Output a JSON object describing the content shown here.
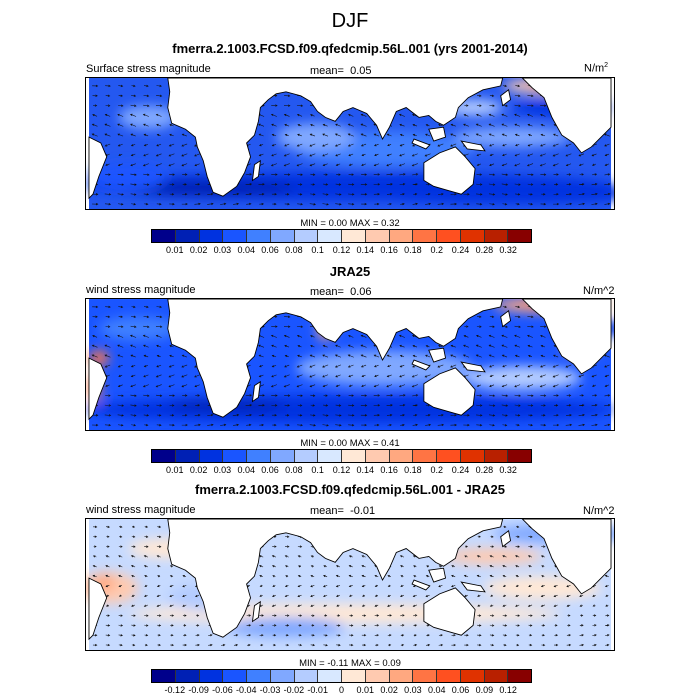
{
  "title": "DJF",
  "panels": [
    {
      "title": "fmerra.2.1003.FCSD.f09.qfedcmip.56L.001 (yrs 2001-2014)",
      "left_label": "Surface stress magnitude",
      "mean_label": "mean=",
      "mean_value": "0.05",
      "units": "N/m",
      "units_sup": "2",
      "minmax": "MIN =   0.00 MAX =   0.32",
      "colorbar_ticks": [
        "0.01",
        "0.02",
        "0.03",
        "0.04",
        "0.06",
        "0.08",
        "0.1",
        "0.12",
        "0.14",
        "0.16",
        "0.18",
        "0.2",
        "0.24",
        "0.28",
        "0.32"
      ]
    },
    {
      "title": "JRA25",
      "left_label": "wind stress magnitude",
      "mean_label": "mean=",
      "mean_value": "0.06",
      "units": "N/m^2",
      "units_sup": "",
      "minmax": "MIN =   0.00 MAX =   0.41",
      "colorbar_ticks": [
        "0.01",
        "0.02",
        "0.03",
        "0.04",
        "0.06",
        "0.08",
        "0.1",
        "0.12",
        "0.14",
        "0.16",
        "0.18",
        "0.2",
        "0.24",
        "0.28",
        "0.32"
      ]
    },
    {
      "title": "fmerra.2.1003.FCSD.f09.qfedcmip.56L.001 - JRA25",
      "left_label": "wind stress magnitude",
      "mean_label": "mean=",
      "mean_value": "-0.01",
      "units": "N/m^2",
      "units_sup": "",
      "minmax": "MIN =  -0.11 MAX =   0.09",
      "colorbar_ticks": [
        "-0.12",
        "-0.09",
        "-0.06",
        "-0.04",
        "-0.03",
        "-0.02",
        "-0.01",
        "0",
        "0.01",
        "0.02",
        "0.03",
        "0.04",
        "0.06",
        "0.09",
        "0.12"
      ]
    }
  ],
  "colors": {
    "palette": [
      "#00008b",
      "#0020b4",
      "#0032e0",
      "#1a55ff",
      "#4080ff",
      "#80a8ff",
      "#b4ccff",
      "#d8e8ff",
      "#ffe8d6",
      "#ffcab0",
      "#ffa880",
      "#ff7444",
      "#ff5020",
      "#e03200",
      "#b82000",
      "#880000"
    ],
    "land": "#ffffff"
  }
}
